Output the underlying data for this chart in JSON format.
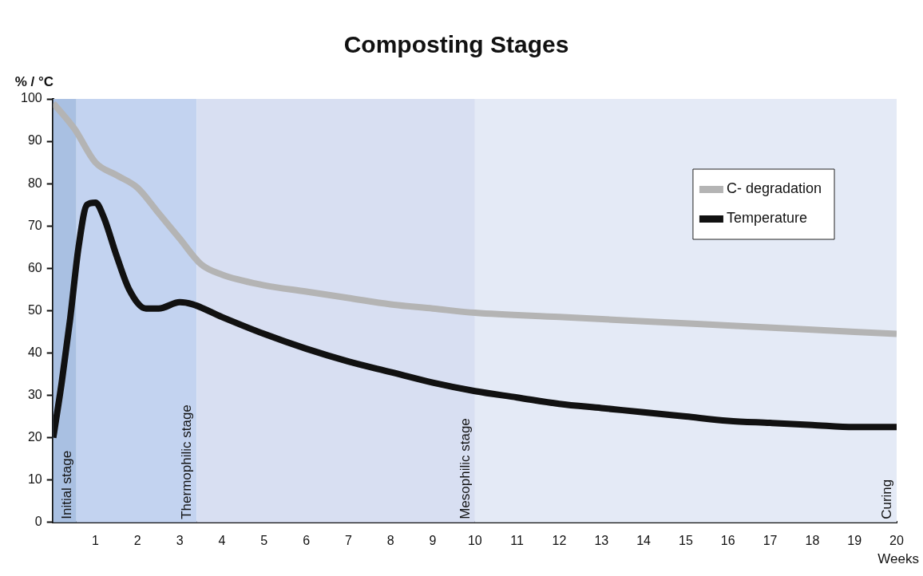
{
  "chart_data": {
    "type": "line",
    "title": "Composting Stages",
    "xlabel": "Weeks",
    "ylabel": "% / °C",
    "xlim": [
      0,
      20
    ],
    "xticks": [
      {
        "value": 0,
        "label": null
      },
      1,
      2,
      3,
      4,
      5,
      6,
      7,
      8,
      9,
      10,
      11,
      12,
      13,
      14,
      15,
      16,
      17,
      18,
      19,
      20
    ],
    "ylim": [
      0,
      100
    ],
    "yticks": [
      0,
      10,
      20,
      30,
      40,
      50,
      60,
      70,
      80,
      90,
      100
    ],
    "grid": false,
    "legend": "top right",
    "marker": "none",
    "line_style": "solid",
    "bands": [
      {
        "axis": "x",
        "from": 0,
        "to": 0.55,
        "label": "Initial stage",
        "color": "#a9c0e2"
      },
      {
        "axis": "x",
        "from": 0.55,
        "to": 3.4,
        "label": "Thermophilic stage",
        "color": "#c3d3f0"
      },
      {
        "axis": "x",
        "from": 3.4,
        "to": 10,
        "label": "Mesophilic stage",
        "color": "#d8dff2"
      },
      {
        "axis": "x",
        "from": 10,
        "to": 20,
        "label": "Curing",
        "color": "#e4eaf6"
      }
    ],
    "series": [
      {
        "name": "C- degradation",
        "color": "#b4b4b4",
        "x": [
          0,
          0.5,
          1,
          1.5,
          2,
          2.5,
          3,
          3.5,
          4,
          5,
          6,
          7,
          8,
          9,
          10,
          12,
          14,
          16,
          18,
          20
        ],
        "values": [
          99,
          93,
          85,
          82,
          79,
          73,
          67,
          61,
          58.5,
          56,
          54.5,
          53,
          51.5,
          50.5,
          49.5,
          48.5,
          47.5,
          46.5,
          45.5,
          44.5
        ]
      },
      {
        "name": "Temperature",
        "color": "#111111",
        "x": [
          0,
          0.2,
          0.4,
          0.6,
          0.8,
          1,
          1.2,
          1.5,
          1.8,
          2.2,
          2.5,
          3,
          3.3,
          4,
          5,
          6,
          7,
          8,
          9,
          10,
          11,
          12,
          13,
          14,
          15,
          16,
          17,
          18,
          19,
          20
        ],
        "values": [
          20,
          33,
          48,
          65,
          75,
          75.5,
          72,
          63,
          55,
          50.5,
          50.5,
          52,
          51.5,
          48.5,
          44.5,
          41,
          38,
          35.5,
          33,
          31,
          29.5,
          28,
          27,
          26,
          25,
          24,
          23.5,
          23,
          22.5,
          22.5
        ]
      }
    ]
  }
}
